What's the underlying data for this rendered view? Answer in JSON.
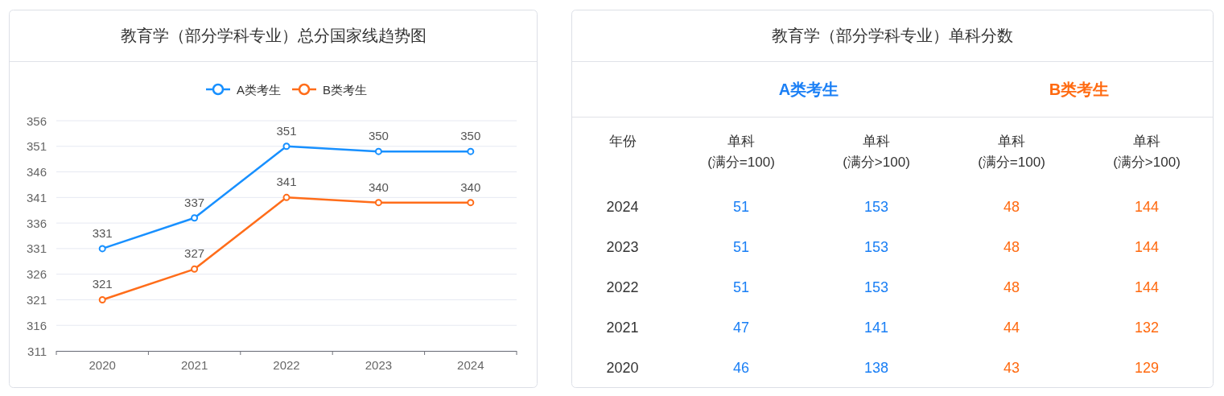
{
  "chart_data": [
    {
      "type": "line",
      "title": "教育学（部分学科专业）总分国家线趋势图",
      "categories": [
        "2020",
        "2021",
        "2022",
        "2023",
        "2024"
      ],
      "series": [
        {
          "name": "A类考生",
          "color": "#1890ff",
          "values": [
            331,
            337,
            351,
            350,
            350
          ]
        },
        {
          "name": "B类考生",
          "color": "#ff6d1a",
          "values": [
            321,
            327,
            341,
            340,
            340
          ]
        }
      ],
      "ylim": [
        311,
        356
      ],
      "yticks": [
        311,
        316,
        321,
        326,
        331,
        336,
        341,
        346,
        351,
        356
      ],
      "grid": "y",
      "legend": "top",
      "marker": "circle",
      "line_style": "solid",
      "data_labels": true
    },
    {
      "type": "heatmap",
      "title": "教育学（部分学科专业）单科分数",
      "annotations": [
        "A类考生",
        "B类考生"
      ],
      "ylabel": "年份",
      "categories": [
        "单科\n(满分=100)",
        "单科\n(满分>100)",
        "单科\n(满分=100)",
        "单科\n(满分>100)"
      ],
      "colors": [
        "#1a7ff5",
        "#1a7ff5",
        "#ff6a10",
        "#ff6a10"
      ],
      "y_categories": [
        "2024",
        "2023",
        "2022",
        "2021",
        "2020"
      ],
      "cells": [
        [
          51,
          153,
          48,
          144
        ],
        [
          51,
          153,
          48,
          144
        ],
        [
          51,
          153,
          48,
          144
        ],
        [
          47,
          141,
          44,
          132
        ],
        [
          46,
          138,
          43,
          129
        ]
      ],
      "data_labels": true
    }
  ]
}
